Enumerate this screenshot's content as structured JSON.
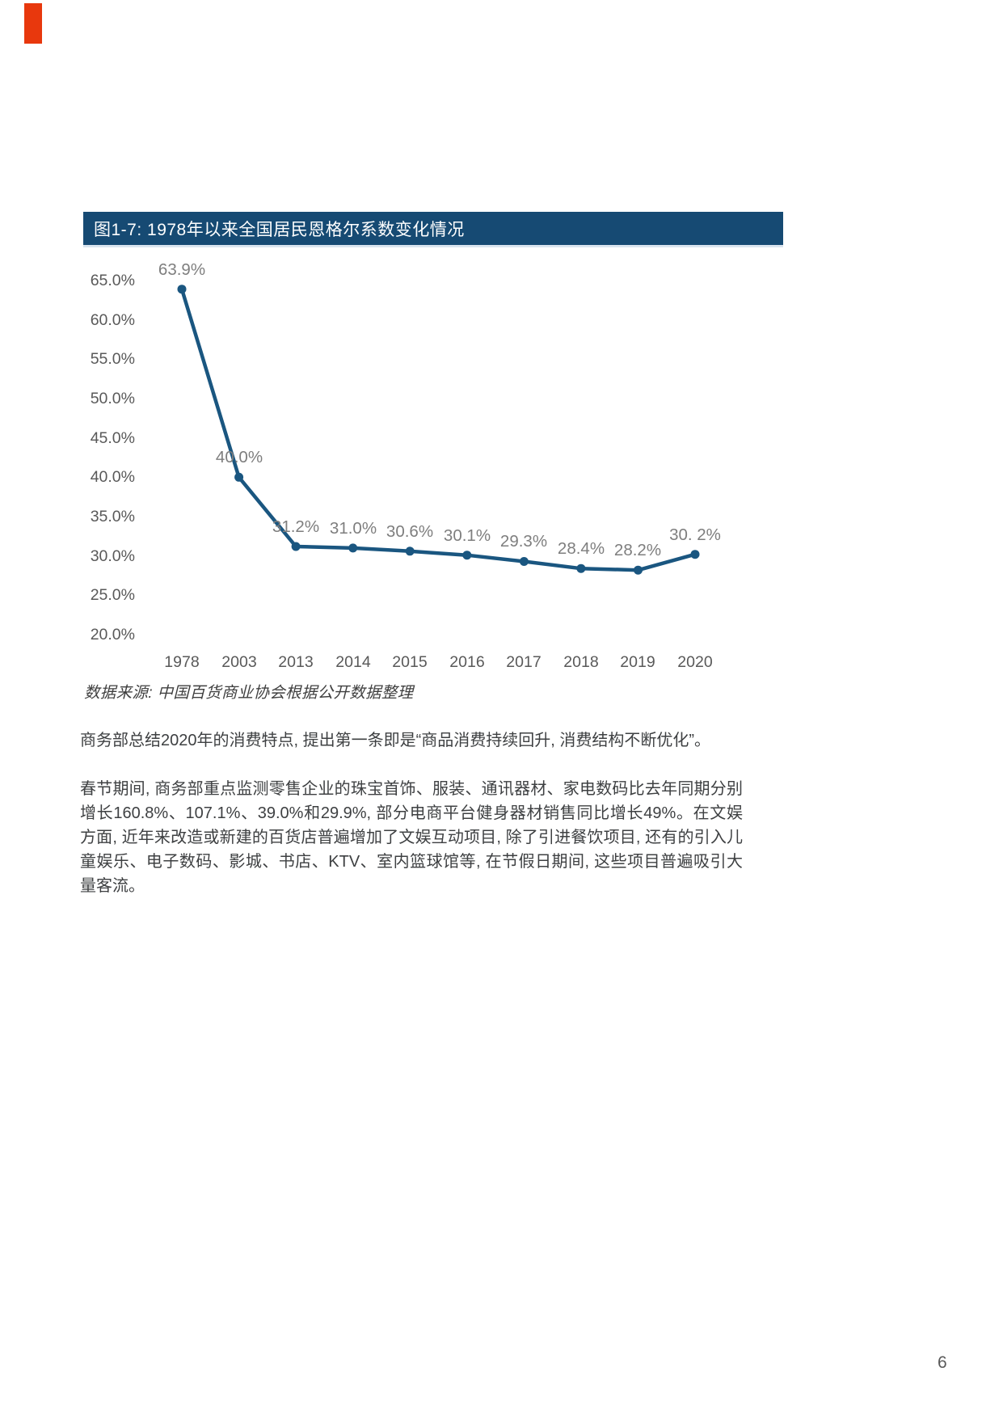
{
  "page": {
    "number": "6"
  },
  "figure": {
    "title": "图1-7: 1978年以来全国居民恩格尔系数变化情况",
    "source": "数据来源: 中国百货商业协会根据公开数据整理"
  },
  "chart_data": {
    "type": "line",
    "title": "图1-7: 1978年以来全国居民恩格尔系数变化情况",
    "categories": [
      "1978",
      "2003",
      "2013",
      "2014",
      "2015",
      "2016",
      "2017",
      "2018",
      "2019",
      "2020"
    ],
    "values": [
      63.9,
      40.0,
      31.2,
      31.0,
      30.6,
      30.1,
      29.3,
      28.4,
      28.2,
      30.2
    ],
    "data_labels": [
      "63.9%",
      "40.0%",
      "31.2%",
      "31.0%",
      "30.6%",
      "30.1%",
      "29.3%",
      "28.4%",
      "28.2%",
      "30. 2%"
    ],
    "y_ticks": [
      65,
      60,
      55,
      50,
      45,
      40,
      35,
      30,
      25,
      20
    ],
    "y_tick_labels": [
      "65.0%",
      "60.0%",
      "55.0%",
      "50.0%",
      "45.0%",
      "40.0%",
      "35.0%",
      "30.0%",
      "25.0%",
      "20.0%"
    ],
    "ylim": [
      20,
      65
    ],
    "xlabel": "",
    "ylabel": "",
    "grid": false,
    "legend": false,
    "line_color": "#1a5680",
    "marker": "circle"
  },
  "paragraphs": [
    "商务部总结2020年的消费特点, 提出第一条即是“商品消费持续回升, 消费结构不断优化”。",
    "春节期间, 商务部重点监测零售企业的珠宝首饰、服装、通讯器材、家电数码比去年同期分别增长160.8%、107.1%、39.0%和29.9%, 部分电商平台健身器材销售同比增长49%。在文娱方面, 近年来改造或新建的百货店普遍增加了文娱互动项目, 除了引进餐饮项目, 还有的引入儿童娱乐、电子数码、影城、书店、KTV、室内篮球馆等, 在节假日期间, 这些项目普遍吸引大量客流。"
  ],
  "colors": {
    "title_bar": "#164a73",
    "line": "#1a5680",
    "axis_text": "#595959",
    "data_label_text": "#7e7e7e",
    "body_text": "#3e4042",
    "corner_mark": "#e8380d"
  }
}
